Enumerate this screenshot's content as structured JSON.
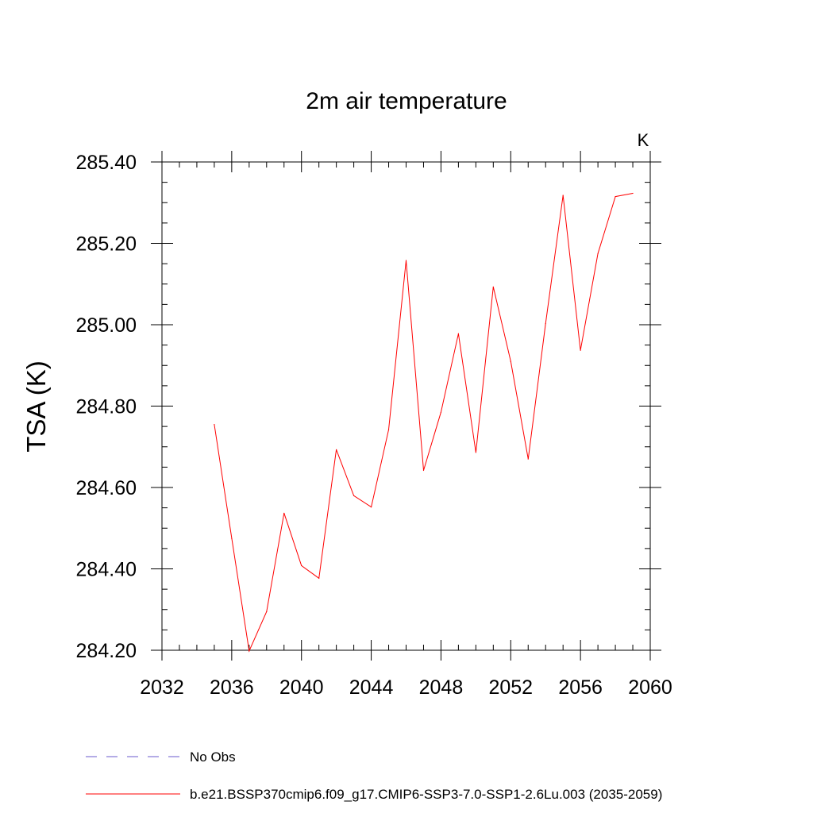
{
  "chart_data": {
    "type": "line",
    "title": "2m air temperature",
    "units": "K",
    "xlabel": "",
    "ylabel": "TSA  (K)",
    "xlim": [
      2032,
      2060
    ],
    "ylim": [
      284.2,
      285.4
    ],
    "xticks": [
      2032,
      2036,
      2040,
      2044,
      2048,
      2052,
      2056,
      2060
    ],
    "yticks": [
      284.2,
      284.4,
      284.6,
      284.8,
      285.0,
      285.2,
      285.4
    ],
    "xtick_labels": [
      "2032",
      "2036",
      "2040",
      "2044",
      "2048",
      "2052",
      "2056",
      "2060"
    ],
    "ytick_labels": [
      "284.20",
      "284.40",
      "284.60",
      "284.80",
      "285.00",
      "285.20",
      "285.40"
    ],
    "grid": false,
    "legend_position": "bottom",
    "series": [
      {
        "name": "No Obs",
        "color": "#6a5acd",
        "style": "dashed",
        "x": [],
        "y": []
      },
      {
        "name": "b.e21.BSSP370cmip6.f09_g17.CMIP6-SSP3-7.0-SSP1-2.6Lu.003 (2035-2059)",
        "color": "#ff0000",
        "style": "solid",
        "x": [
          2035,
          2036,
          2037,
          2038,
          2039,
          2040,
          2041,
          2042,
          2043,
          2044,
          2045,
          2046,
          2047,
          2048,
          2049,
          2050,
          2051,
          2052,
          2053,
          2054,
          2055,
          2056,
          2057,
          2058,
          2059
        ],
        "y": [
          284.755,
          284.475,
          284.198,
          284.295,
          284.537,
          284.408,
          284.377,
          284.693,
          284.58,
          284.552,
          284.742,
          285.158,
          284.642,
          284.785,
          284.978,
          284.686,
          285.093,
          284.91,
          284.67,
          285.003,
          285.318,
          284.937,
          285.175,
          285.315,
          285.323
        ]
      }
    ]
  }
}
